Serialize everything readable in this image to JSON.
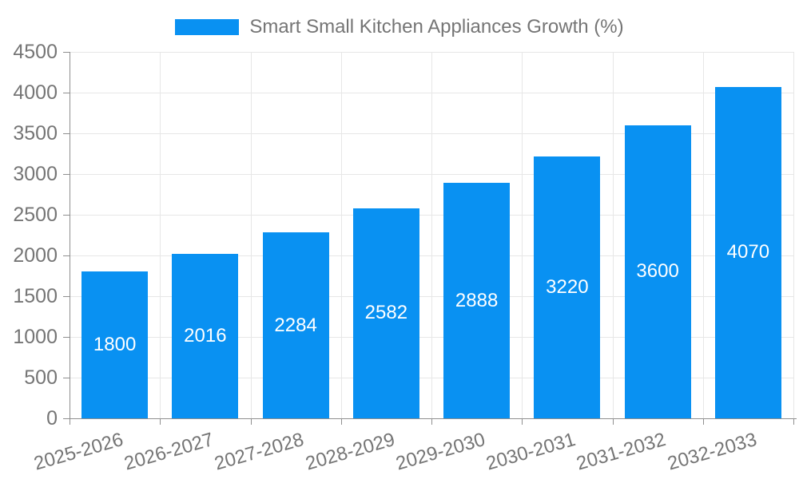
{
  "legend": {
    "label": "Smart Small Kitchen Appliances Growth (%)"
  },
  "colors": {
    "bar": "#0991f2",
    "axis_line": "#8f8f8f",
    "grid_line": "#e7e7e7",
    "axis_text": "#757575",
    "value_text": "#ffffff"
  },
  "chart_data": {
    "type": "bar",
    "title": "",
    "legend": "Smart Small Kitchen Appliances Growth (%)",
    "legend_position": "top",
    "categories": [
      "2025-2026",
      "2026-2027",
      "2027-2028",
      "2028-2029",
      "2029-2030",
      "2030-2031",
      "2031-2032",
      "2032-2033"
    ],
    "values": [
      1800,
      2016,
      2284,
      2582,
      2888,
      3220,
      3600,
      4070
    ],
    "xlabel": "",
    "ylabel": "",
    "ylim": [
      0,
      4500
    ],
    "yticks": [
      0,
      500,
      1000,
      1500,
      2000,
      2500,
      3000,
      3500,
      4000,
      4500
    ],
    "grid": true,
    "x_tick_rotation_deg": -16,
    "bar_label_position": "inside-center"
  }
}
